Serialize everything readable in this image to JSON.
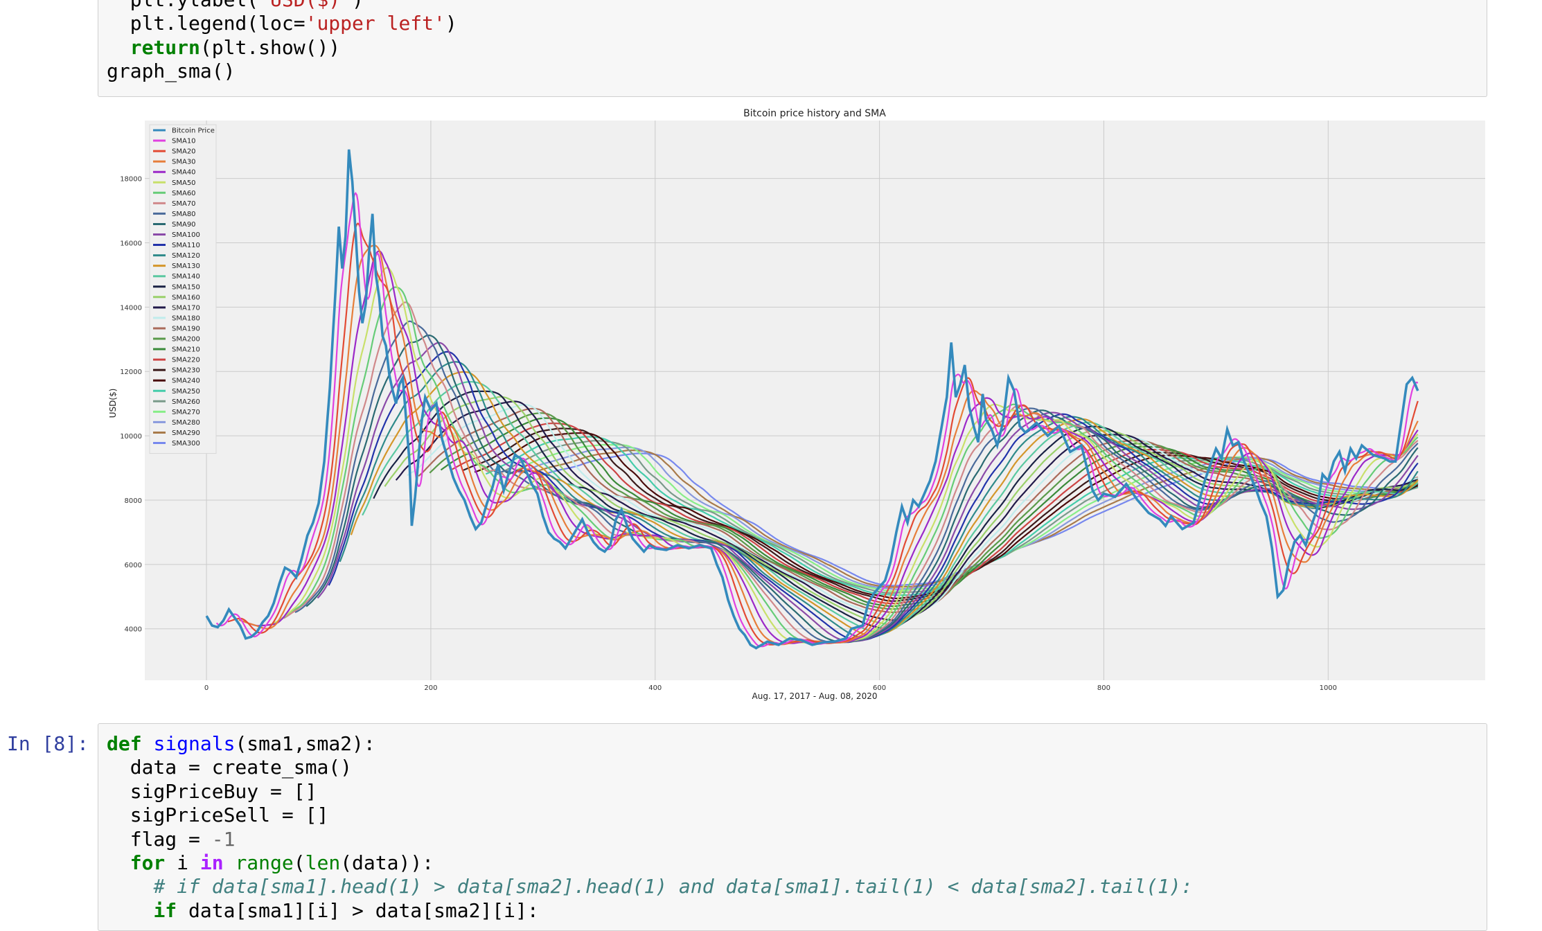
{
  "notebook": {
    "top_cell": {
      "lines": [
        {
          "indent": "  ",
          "parts": [
            [
              "plt.ylabel(",
              ""
            ],
            [
              "'USD($)'",
              "str"
            ],
            [
              ")",
              ""
            ]
          ]
        },
        {
          "indent": "  ",
          "parts": [
            [
              "plt.legend(loc=",
              ""
            ],
            [
              "'upper left'",
              "str"
            ],
            [
              ")",
              ""
            ]
          ]
        },
        {
          "indent": "  ",
          "parts": [
            [
              "return",
              "kw"
            ],
            [
              "(plt.show())",
              ""
            ]
          ]
        },
        {
          "indent": "",
          "parts": [
            [
              "graph_sma()",
              ""
            ]
          ]
        }
      ]
    },
    "bottom_cell": {
      "prompt": "In [8]:",
      "lines": [
        {
          "indent": "",
          "parts": [
            [
              "def",
              "kw"
            ],
            [
              " ",
              ""
            ],
            [
              "signals",
              "fn"
            ],
            [
              "(sma1,sma2):",
              ""
            ]
          ]
        },
        {
          "indent": "  ",
          "parts": [
            [
              "data = create_sma()",
              ""
            ]
          ]
        },
        {
          "indent": "  ",
          "parts": [
            [
              "sigPriceBuy = []",
              ""
            ]
          ]
        },
        {
          "indent": "  ",
          "parts": [
            [
              "sigPriceSell = []",
              ""
            ]
          ]
        },
        {
          "indent": "  ",
          "parts": [
            [
              "flag = ",
              ""
            ],
            [
              "-1",
              "num"
            ]
          ]
        },
        {
          "indent": "  ",
          "parts": [
            [
              "for",
              "kw"
            ],
            [
              " i ",
              ""
            ],
            [
              "in",
              "op"
            ],
            [
              " ",
              ""
            ],
            [
              "range",
              "bi"
            ],
            [
              "(",
              ""
            ],
            [
              "len",
              "bi"
            ],
            [
              "(data)):",
              ""
            ]
          ]
        },
        {
          "indent": "    ",
          "parts": [
            [
              "# if data[sma1].head(1) > data[sma2].head(1) and data[sma1].tail(1) < data[sma2].tail(1):",
              "cm"
            ]
          ]
        },
        {
          "indent": "    ",
          "parts": [
            [
              "if",
              "kw"
            ],
            [
              " data[sma1][i] > data[sma2][i]:",
              ""
            ]
          ]
        }
      ]
    }
  },
  "chart_data": {
    "type": "line",
    "title": "Bitcoin price history and SMA",
    "xlabel": "Aug. 17, 2017 - Aug. 08, 2020",
    "ylabel": "USD($)",
    "xlim": [
      -55,
      1140
    ],
    "ylim": [
      2400,
      19800
    ],
    "xticks": [
      0,
      200,
      400,
      600,
      800,
      1000
    ],
    "yticks": [
      4000,
      6000,
      8000,
      10000,
      12000,
      14000,
      16000,
      18000
    ],
    "grid": true,
    "legend_position": "upper left",
    "price_anchors": [
      [
        0,
        4400
      ],
      [
        5,
        4100
      ],
      [
        10,
        4050
      ],
      [
        15,
        4250
      ],
      [
        20,
        4600
      ],
      [
        25,
        4350
      ],
      [
        30,
        4100
      ],
      [
        35,
        3700
      ],
      [
        40,
        3750
      ],
      [
        45,
        3900
      ],
      [
        50,
        4200
      ],
      [
        55,
        4400
      ],
      [
        60,
        4800
      ],
      [
        65,
        5400
      ],
      [
        70,
        5900
      ],
      [
        75,
        5800
      ],
      [
        80,
        5600
      ],
      [
        85,
        6200
      ],
      [
        90,
        6900
      ],
      [
        95,
        7300
      ],
      [
        100,
        7900
      ],
      [
        105,
        9200
      ],
      [
        110,
        11500
      ],
      [
        115,
        14500
      ],
      [
        118,
        16500
      ],
      [
        121,
        15200
      ],
      [
        124,
        16200
      ],
      [
        127,
        18900
      ],
      [
        130,
        17900
      ],
      [
        133,
        16300
      ],
      [
        136,
        14500
      ],
      [
        139,
        13500
      ],
      [
        142,
        14100
      ],
      [
        145,
        15700
      ],
      [
        148,
        16900
      ],
      [
        151,
        15000
      ],
      [
        154,
        14300
      ],
      [
        157,
        13100
      ],
      [
        160,
        12800
      ],
      [
        163,
        11900
      ],
      [
        166,
        11400
      ],
      [
        169,
        11000
      ],
      [
        172,
        11600
      ],
      [
        175,
        11800
      ],
      [
        178,
        10500
      ],
      [
        181,
        9200
      ],
      [
        183,
        7200
      ],
      [
        186,
        8100
      ],
      [
        189,
        9300
      ],
      [
        192,
        10500
      ],
      [
        195,
        11200
      ],
      [
        200,
        10800
      ],
      [
        205,
        11000
      ],
      [
        210,
        9900
      ],
      [
        215,
        9300
      ],
      [
        220,
        8700
      ],
      [
        225,
        8300
      ],
      [
        230,
        8000
      ],
      [
        235,
        7500
      ],
      [
        240,
        7100
      ],
      [
        245,
        7300
      ],
      [
        250,
        7900
      ],
      [
        255,
        8400
      ],
      [
        260,
        9100
      ],
      [
        265,
        8300
      ],
      [
        270,
        8900
      ],
      [
        275,
        9400
      ],
      [
        280,
        9300
      ],
      [
        285,
        8900
      ],
      [
        290,
        8500
      ],
      [
        295,
        8200
      ],
      [
        300,
        7500
      ],
      [
        305,
        7000
      ],
      [
        310,
        6800
      ],
      [
        315,
        6700
      ],
      [
        320,
        6500
      ],
      [
        330,
        7100
      ],
      [
        335,
        7400
      ],
      [
        340,
        7000
      ],
      [
        345,
        6700
      ],
      [
        350,
        6500
      ],
      [
        355,
        6400
      ],
      [
        360,
        6600
      ],
      [
        365,
        7400
      ],
      [
        370,
        7700
      ],
      [
        375,
        7200
      ],
      [
        380,
        6800
      ],
      [
        385,
        6600
      ],
      [
        390,
        6400
      ],
      [
        395,
        6600
      ],
      [
        400,
        6500
      ],
      [
        410,
        6450
      ],
      [
        420,
        6600
      ],
      [
        430,
        6500
      ],
      [
        440,
        6600
      ],
      [
        450,
        6500
      ],
      [
        455,
        6000
      ],
      [
        460,
        5600
      ],
      [
        465,
        4900
      ],
      [
        470,
        4400
      ],
      [
        475,
        4000
      ],
      [
        480,
        3800
      ],
      [
        485,
        3500
      ],
      [
        490,
        3400
      ],
      [
        500,
        3600
      ],
      [
        510,
        3500
      ],
      [
        520,
        3700
      ],
      [
        530,
        3650
      ],
      [
        540,
        3500
      ],
      [
        550,
        3580
      ],
      [
        560,
        3600
      ],
      [
        570,
        3700
      ],
      [
        575,
        4000
      ],
      [
        580,
        4050
      ],
      [
        585,
        4100
      ],
      [
        590,
        4800
      ],
      [
        595,
        5100
      ],
      [
        600,
        5300
      ],
      [
        605,
        5500
      ],
      [
        610,
        6100
      ],
      [
        615,
        7000
      ],
      [
        620,
        7800
      ],
      [
        625,
        7300
      ],
      [
        630,
        8000
      ],
      [
        635,
        7800
      ],
      [
        640,
        8200
      ],
      [
        645,
        8600
      ],
      [
        650,
        9200
      ],
      [
        655,
        10200
      ],
      [
        660,
        11200
      ],
      [
        664,
        12900
      ],
      [
        668,
        11200
      ],
      [
        672,
        11600
      ],
      [
        676,
        12200
      ],
      [
        680,
        10900
      ],
      [
        684,
        10300
      ],
      [
        688,
        9800
      ],
      [
        692,
        11300
      ],
      [
        695,
        10500
      ],
      [
        700,
        10200
      ],
      [
        705,
        9700
      ],
      [
        710,
        10400
      ],
      [
        715,
        11800
      ],
      [
        720,
        11400
      ],
      [
        725,
        10300
      ],
      [
        730,
        10100
      ],
      [
        740,
        10400
      ],
      [
        750,
        10000
      ],
      [
        760,
        10300
      ],
      [
        770,
        9500
      ],
      [
        780,
        9700
      ],
      [
        790,
        8300
      ],
      [
        795,
        8000
      ],
      [
        800,
        8200
      ],
      [
        810,
        8100
      ],
      [
        820,
        8500
      ],
      [
        830,
        8000
      ],
      [
        840,
        7600
      ],
      [
        850,
        7400
      ],
      [
        855,
        7200
      ],
      [
        860,
        7500
      ],
      [
        870,
        7100
      ],
      [
        880,
        7300
      ],
      [
        890,
        8600
      ],
      [
        900,
        9600
      ],
      [
        905,
        9300
      ],
      [
        910,
        10200
      ],
      [
        915,
        9700
      ],
      [
        920,
        9800
      ],
      [
        925,
        9200
      ],
      [
        930,
        8800
      ],
      [
        935,
        8400
      ],
      [
        940,
        7900
      ],
      [
        945,
        7500
      ],
      [
        950,
        6500
      ],
      [
        955,
        5000
      ],
      [
        960,
        5200
      ],
      [
        965,
        6100
      ],
      [
        970,
        6700
      ],
      [
        975,
        6900
      ],
      [
        980,
        6600
      ],
      [
        985,
        7200
      ],
      [
        990,
        7700
      ],
      [
        995,
        8800
      ],
      [
        1000,
        8600
      ],
      [
        1005,
        9200
      ],
      [
        1010,
        9500
      ],
      [
        1015,
        8900
      ],
      [
        1020,
        9600
      ],
      [
        1025,
        9300
      ],
      [
        1030,
        9700
      ],
      [
        1040,
        9400
      ],
      [
        1050,
        9300
      ],
      [
        1055,
        9200
      ],
      [
        1060,
        9200
      ],
      [
        1065,
        10400
      ],
      [
        1070,
        11600
      ],
      [
        1075,
        11800
      ],
      [
        1080,
        11400
      ]
    ],
    "sma_windows": [
      10,
      20,
      30,
      40,
      50,
      60,
      70,
      80,
      90,
      100,
      110,
      120,
      130,
      140,
      150,
      160,
      170,
      180,
      190,
      200,
      210,
      220,
      230,
      240,
      250,
      260,
      270,
      280,
      290,
      300
    ],
    "series": [
      {
        "name": "Bitcoin Price",
        "color": "#348abd"
      },
      {
        "name": "SMA10",
        "color": "#e040e0"
      },
      {
        "name": "SMA20",
        "color": "#e24a33"
      },
      {
        "name": "SMA30",
        "color": "#e67e3a"
      },
      {
        "name": "SMA40",
        "color": "#9b28c8"
      },
      {
        "name": "SMA50",
        "color": "#c8e06a"
      },
      {
        "name": "SMA60",
        "color": "#66cc77"
      },
      {
        "name": "SMA70",
        "color": "#d0888a"
      },
      {
        "name": "SMA80",
        "color": "#4a6a9a"
      },
      {
        "name": "SMA90",
        "color": "#2a6a72"
      },
      {
        "name": "SMA100",
        "color": "#8a4aa8"
      },
      {
        "name": "SMA110",
        "color": "#2233aa"
      },
      {
        "name": "SMA120",
        "color": "#2e8a8a"
      },
      {
        "name": "SMA130",
        "color": "#d4962a"
      },
      {
        "name": "SMA140",
        "color": "#5ac8a0"
      },
      {
        "name": "SMA150",
        "color": "#1a2244"
      },
      {
        "name": "SMA160",
        "color": "#9ad06a"
      },
      {
        "name": "SMA170",
        "color": "#221a4a"
      },
      {
        "name": "SMA180",
        "color": "#c0ecec"
      },
      {
        "name": "SMA190",
        "color": "#aa6a5a"
      },
      {
        "name": "SMA200",
        "color": "#5a9a4a"
      },
      {
        "name": "SMA210",
        "color": "#3a8a3a"
      },
      {
        "name": "SMA220",
        "color": "#cc4444"
      },
      {
        "name": "SMA230",
        "color": "#3a1a1a"
      },
      {
        "name": "SMA240",
        "color": "#4a0a0a"
      },
      {
        "name": "SMA250",
        "color": "#44ccaa"
      },
      {
        "name": "SMA260",
        "color": "#7a9a8a"
      },
      {
        "name": "SMA270",
        "color": "#88ee88"
      },
      {
        "name": "SMA280",
        "color": "#8899dd"
      },
      {
        "name": "SMA290",
        "color": "#a87a4a"
      },
      {
        "name": "SMA300",
        "color": "#7788ee"
      }
    ]
  }
}
